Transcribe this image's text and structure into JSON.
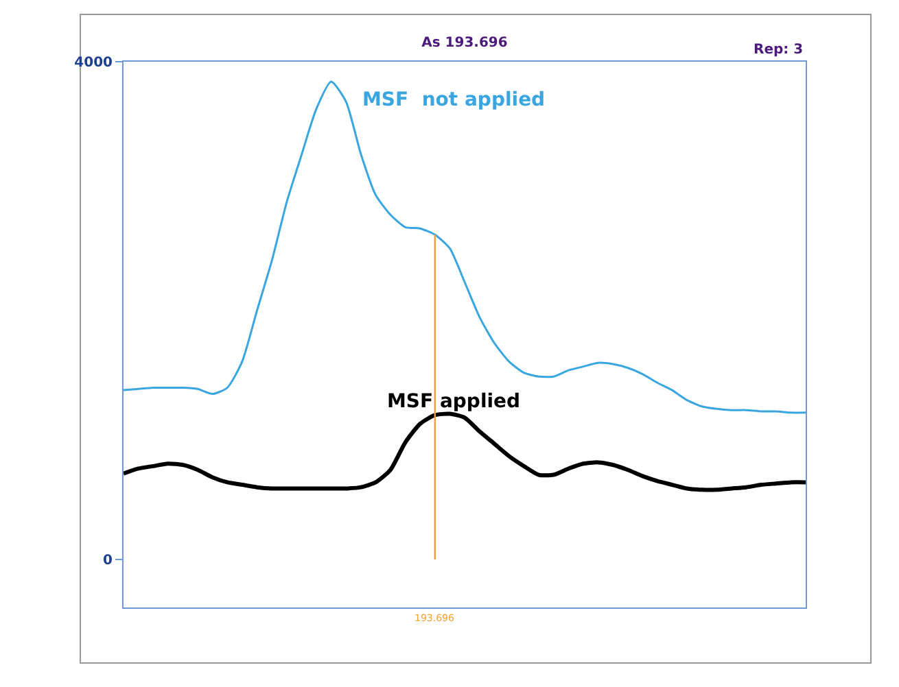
{
  "chart_data": {
    "type": "line",
    "title": "As 193.696",
    "annotations": [
      "Rep: 3",
      "193.696"
    ],
    "categories": [
      null,
      null,
      null,
      null,
      null,
      null,
      null,
      null,
      null,
      null,
      null,
      null,
      null,
      null,
      null,
      null,
      null,
      null,
      null,
      null,
      null,
      null,
      null,
      null,
      null,
      null,
      null,
      null,
      null,
      null,
      null,
      null,
      null,
      null,
      null,
      null,
      null,
      null,
      null,
      null,
      null,
      null,
      null,
      null,
      null,
      null,
      null
    ],
    "series": [
      {
        "name": "MSF  not applied",
        "color": "#3aa6e0",
        "values": [
          1360,
          1370,
          1380,
          1380,
          1380,
          1370,
          1330,
          1380,
          1590,
          2000,
          2400,
          2870,
          3250,
          3620,
          3840,
          3680,
          3260,
          2930,
          2770,
          2670,
          2660,
          2610,
          2500,
          2230,
          1950,
          1740,
          1590,
          1500,
          1470,
          1470,
          1520,
          1550,
          1580,
          1570,
          1540,
          1490,
          1420,
          1360,
          1280,
          1230,
          1210,
          1200,
          1200,
          1190,
          1190,
          1180,
          1180
        ]
      },
      {
        "name": "MSF applied",
        "color": "#000000",
        "values": [
          690,
          730,
          750,
          770,
          760,
          720,
          660,
          620,
          600,
          580,
          570,
          570,
          570,
          570,
          570,
          570,
          580,
          620,
          720,
          940,
          1090,
          1160,
          1170,
          1140,
          1030,
          930,
          830,
          750,
          680,
          680,
          730,
          770,
          780,
          760,
          720,
          670,
          630,
          600,
          570,
          560,
          560,
          570,
          580,
          600,
          610,
          620,
          620
        ]
      }
    ],
    "ylim": [
      -386,
      4000
    ],
    "yticks": [
      0,
      4000
    ],
    "tick_labels": "y",
    "grid": false,
    "legend": false,
    "marker": "none",
    "line_style": "solid"
  }
}
